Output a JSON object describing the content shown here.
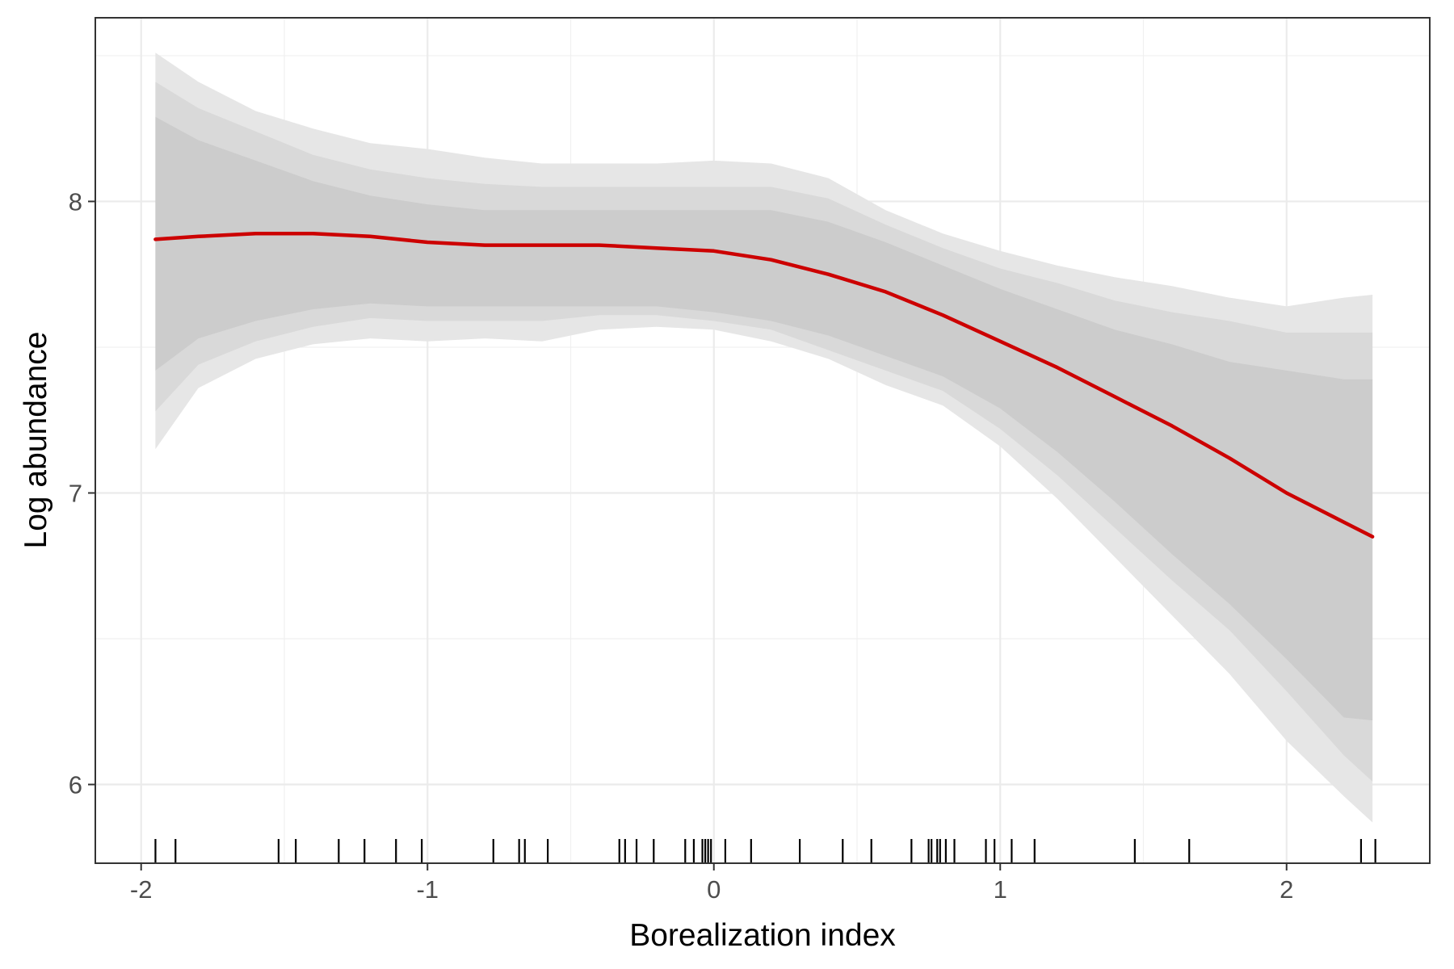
{
  "chart_data": {
    "type": "line",
    "title": "",
    "xlabel": "Borealization index",
    "ylabel": "Log abundance",
    "xlim": [
      -2.16,
      2.5
    ],
    "ylim": [
      5.73,
      8.63
    ],
    "x_ticks": [
      -2,
      -1,
      0,
      1,
      2
    ],
    "x_tick_labels": [
      "-2",
      "-1",
      "0",
      "1",
      "2"
    ],
    "y_ticks": [
      6,
      7,
      8
    ],
    "y_tick_labels": [
      "6",
      "7",
      "8"
    ],
    "grid": true,
    "line_color": "#cc0000",
    "band_colors": [
      "#e6e6e6",
      "#d9d9d9",
      "#cccccc"
    ],
    "x": [
      -1.95,
      -1.8,
      -1.6,
      -1.4,
      -1.2,
      -1.0,
      -0.8,
      -0.6,
      -0.4,
      -0.2,
      0.0,
      0.2,
      0.4,
      0.6,
      0.8,
      1.0,
      1.2,
      1.4,
      1.6,
      1.8,
      2.0,
      2.2,
      2.3
    ],
    "series": [
      {
        "fit": [
          7.87,
          7.88,
          7.89,
          7.89,
          7.88,
          7.86,
          7.85,
          7.85,
          7.85,
          7.84,
          7.83,
          7.8,
          7.75,
          7.69,
          7.61,
          7.52,
          7.43,
          7.33,
          7.23,
          7.12,
          7.0,
          6.9,
          6.85
        ],
        "band_outer_upper": [
          8.51,
          8.41,
          8.31,
          8.25,
          8.2,
          8.18,
          8.15,
          8.13,
          8.13,
          8.13,
          8.14,
          8.13,
          8.08,
          7.97,
          7.89,
          7.83,
          7.78,
          7.74,
          7.71,
          7.67,
          7.64,
          7.67,
          7.68
        ],
        "band_mid_upper": [
          8.41,
          8.32,
          8.24,
          8.16,
          8.11,
          8.08,
          8.06,
          8.05,
          8.05,
          8.05,
          8.05,
          8.05,
          8.01,
          7.92,
          7.84,
          7.77,
          7.72,
          7.66,
          7.62,
          7.59,
          7.55,
          7.55,
          7.55
        ],
        "band_inner_upper": [
          8.29,
          8.21,
          8.14,
          8.07,
          8.02,
          7.99,
          7.97,
          7.97,
          7.97,
          7.97,
          7.97,
          7.97,
          7.93,
          7.86,
          7.78,
          7.7,
          7.63,
          7.56,
          7.51,
          7.45,
          7.42,
          7.39,
          7.39
        ],
        "band_inner_lower": [
          7.42,
          7.53,
          7.59,
          7.63,
          7.65,
          7.64,
          7.64,
          7.64,
          7.64,
          7.64,
          7.62,
          7.59,
          7.54,
          7.47,
          7.4,
          7.29,
          7.14,
          6.97,
          6.79,
          6.62,
          6.43,
          6.23,
          6.22
        ],
        "band_mid_lower": [
          7.28,
          7.44,
          7.52,
          7.57,
          7.6,
          7.59,
          7.59,
          7.59,
          7.61,
          7.61,
          7.59,
          7.56,
          7.49,
          7.42,
          7.35,
          7.22,
          7.06,
          6.88,
          6.7,
          6.53,
          6.32,
          6.1,
          6.01
        ],
        "band_outer_lower": [
          7.15,
          7.36,
          7.46,
          7.51,
          7.53,
          7.52,
          7.53,
          7.52,
          7.56,
          7.57,
          7.56,
          7.52,
          7.46,
          7.37,
          7.3,
          7.16,
          6.98,
          6.78,
          6.58,
          6.38,
          6.15,
          5.96,
          5.87
        ]
      }
    ],
    "rug_x": [
      -1.95,
      -1.88,
      -1.52,
      -1.46,
      -1.31,
      -1.22,
      -1.11,
      -1.02,
      -0.77,
      -0.68,
      -0.66,
      -0.58,
      -0.33,
      -0.31,
      -0.27,
      -0.21,
      -0.1,
      -0.07,
      -0.04,
      -0.03,
      -0.02,
      -0.01,
      0.04,
      0.13,
      0.3,
      0.45,
      0.55,
      0.69,
      0.75,
      0.76,
      0.78,
      0.79,
      0.81,
      0.84,
      0.95,
      0.98,
      1.04,
      1.12,
      1.47,
      1.66,
      2.26,
      2.31
    ]
  }
}
